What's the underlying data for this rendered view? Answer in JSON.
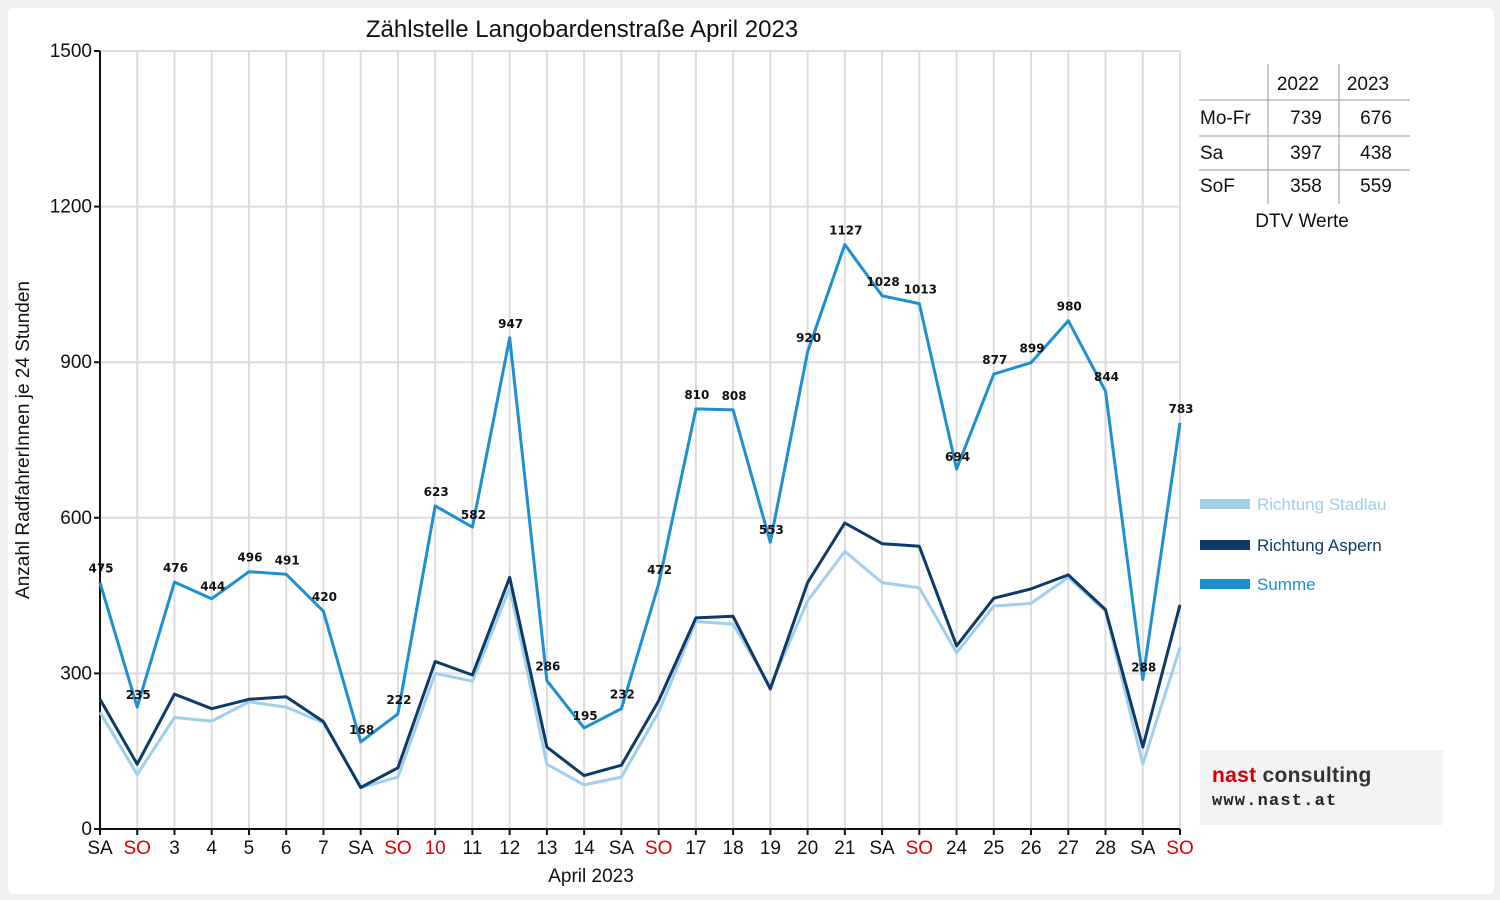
{
  "chart_data": {
    "type": "line",
    "title": "Zählstelle Langobardenstraße April 2023",
    "xlabel": "April 2023",
    "ylabel": "Anzahl RadfahrerInnen je 24 Stunden",
    "ylim": [
      0,
      1500
    ],
    "yticks": [
      0,
      300,
      600,
      900,
      1200,
      1500
    ],
    "grid": true,
    "legend_position": "right",
    "categories": [
      "SA",
      "SO",
      "3",
      "4",
      "5",
      "6",
      "7",
      "SA",
      "SO",
      "10",
      "11",
      "12",
      "13",
      "14",
      "SA",
      "SO",
      "17",
      "18",
      "19",
      "20",
      "21",
      "SA",
      "SO",
      "24",
      "25",
      "26",
      "27",
      "28",
      "SA",
      "SO"
    ],
    "holidays": [
      false,
      true,
      false,
      false,
      false,
      false,
      false,
      false,
      true,
      true,
      false,
      false,
      false,
      false,
      false,
      true,
      false,
      false,
      false,
      false,
      false,
      false,
      true,
      false,
      false,
      false,
      false,
      false,
      false,
      true
    ],
    "series": [
      {
        "name": "Richtung Stadlau",
        "color": "#9fcfea",
        "values": [
          225,
          105,
          215,
          208,
          245,
          235,
          205,
          80,
          100,
          300,
          285,
          465,
          125,
          85,
          100,
          225,
          400,
          395,
          275,
          440,
          535,
          475,
          465,
          340,
          430,
          435,
          485,
          420,
          125,
          350
        ]
      },
      {
        "name": "Richtung Aspern",
        "color": "#0d3a66",
        "values": [
          250,
          125,
          260,
          232,
          250,
          255,
          207,
          80,
          118,
          323,
          297,
          485,
          158,
          103,
          123,
          247,
          407,
          410,
          270,
          475,
          590,
          550,
          545,
          353,
          445,
          463,
          490,
          423,
          158,
          432
        ]
      },
      {
        "name": "Summe",
        "color": "#1e8fd0",
        "values": [
          475,
          235,
          476,
          444,
          496,
          491,
          420,
          168,
          222,
          623,
          582,
          947,
          286,
          195,
          232,
          472,
          810,
          808,
          553,
          920,
          1127,
          1028,
          1013,
          694,
          877,
          899,
          980,
          844,
          288,
          783
        ]
      }
    ]
  },
  "dtv_table": {
    "caption": "DTV Werte",
    "columns": [
      "2022",
      "2023"
    ],
    "rows": [
      {
        "label": "Mo-Fr",
        "v2022": "739",
        "v2023": "676"
      },
      {
        "label": "Sa",
        "v2022": "397",
        "v2023": "438"
      },
      {
        "label": "SoF",
        "v2022": "358",
        "v2023": "559"
      }
    ]
  },
  "logo": {
    "line1_a": "nast",
    "line1_b": " consulting",
    "line2": "www.nast.at"
  },
  "colors": {
    "holiday": "#e00000",
    "grid": "#dcdcdc"
  }
}
